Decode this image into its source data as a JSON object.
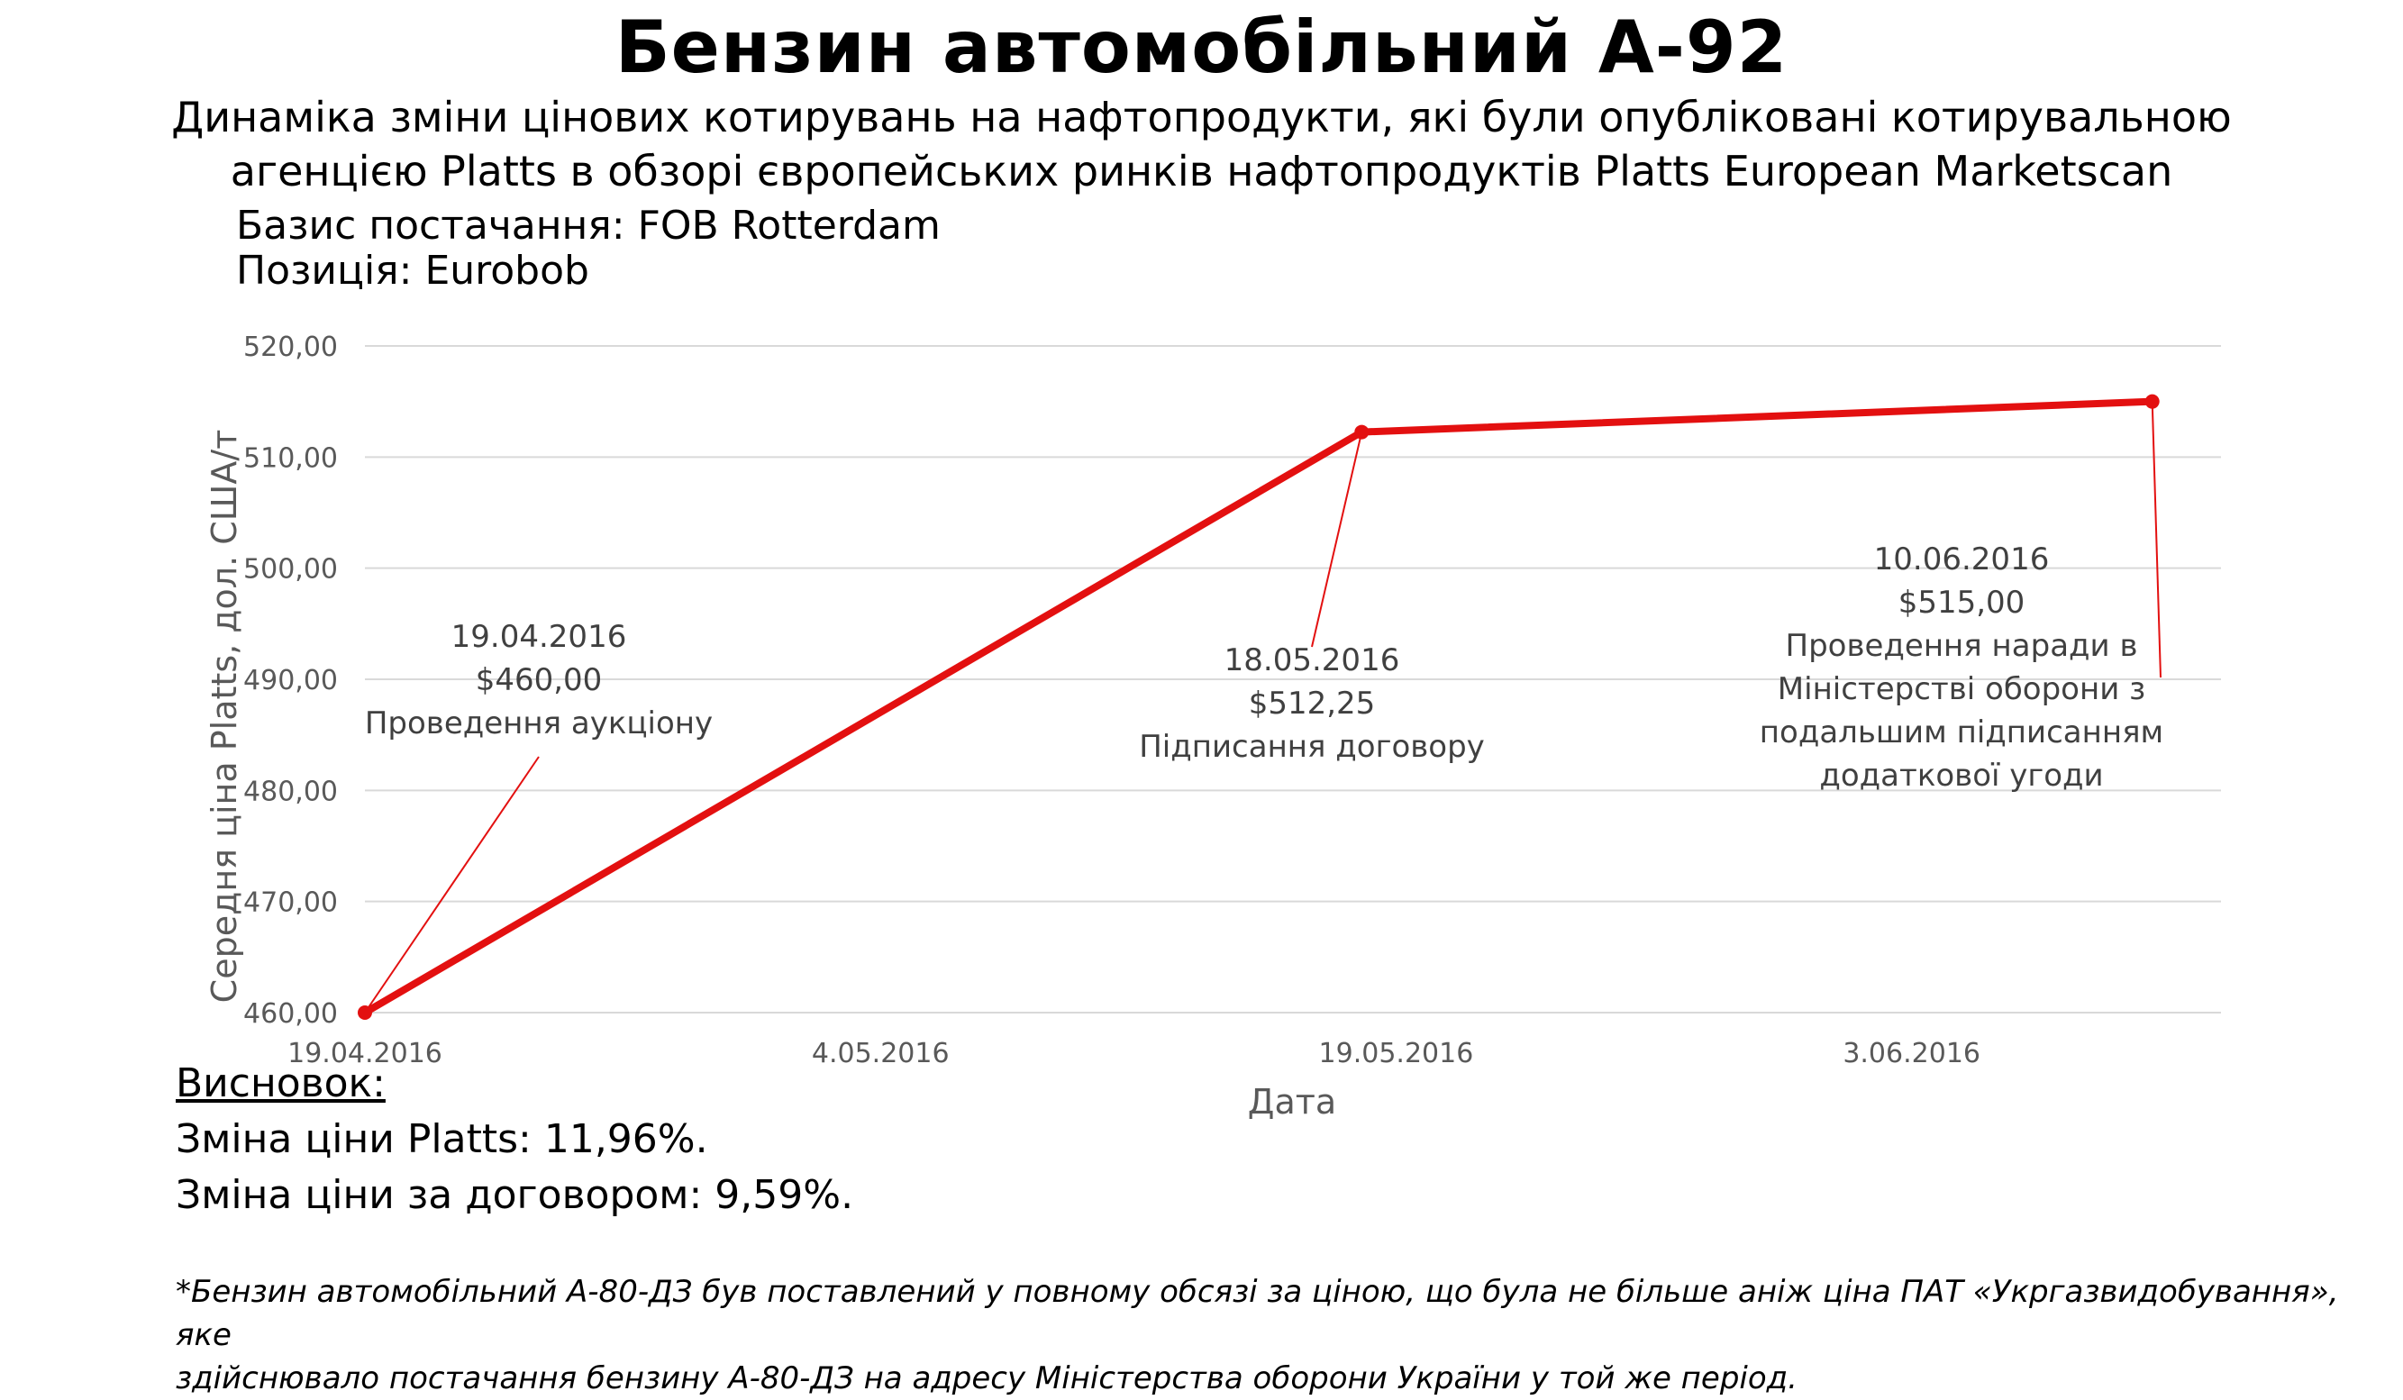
{
  "title": "Бензин автомобільний А-92",
  "subtitle_lines": [
    "Динаміка зміни цінових котирувань на нафтопродукти, які були опубліковані котирувальною",
    "агенцією Platts в обзорі європейських ринків нафтопродуктів Platts European Marketscan"
  ],
  "basis": "Базис постачання: FOB Rotterdam",
  "position": "Позиція: Eurobob",
  "conclusion": {
    "heading": "Висновок:",
    "platts_change": "Зміна ціни Platts: 11,96%.",
    "contract_change": "Зміна ціни за договором: 9,59%."
  },
  "footnote_lines": [
    "*Бензин автомобільний А-80-ДЗ був поставлений у повному обсязі за ціною, що була не більше аніж ціна ПАТ «Укргазвидобування», яке",
    "здійснювало постачання бензину А-80-ДЗ на адресу Міністерства оборони України у той же період."
  ],
  "colors": {
    "series": "#e31010",
    "grid": "#d9d9d9",
    "axis_text": "#595959",
    "annotation_text": "#404040"
  },
  "chart_data": {
    "type": "line",
    "xlabel": "Дата",
    "ylabel": "Середня ціна Platts, дол. США/т",
    "ylim": [
      460,
      520
    ],
    "y_ticks": [
      "460,00",
      "470,00",
      "480,00",
      "490,00",
      "500,00",
      "510,00",
      "520,00"
    ],
    "x_ticks": [
      "19.04.2016",
      "4.05.2016",
      "19.05.2016",
      "3.06.2016"
    ],
    "x_tick_values": [
      "2016-04-19",
      "2016-05-04",
      "2016-05-19",
      "2016-06-03"
    ],
    "xlim": [
      "2016-04-19",
      "2016-06-12"
    ],
    "grid": true,
    "series": [
      {
        "x": [
          "2016-04-19",
          "2016-05-18",
          "2016-06-10"
        ],
        "y": [
          460.0,
          512.25,
          515.0
        ]
      }
    ],
    "annotations": [
      {
        "x": "2016-04-19",
        "lines": [
          "19.04.2016",
          "$460,00",
          "Проведення аукціону"
        ]
      },
      {
        "x": "2016-05-18",
        "lines": [
          "18.05.2016",
          "$512,25",
          "Підписання договору"
        ]
      },
      {
        "x": "2016-06-10",
        "lines": [
          "10.06.2016",
          "$515,00",
          "Проведення наради в",
          "Міністерстві оборони з",
          "подальшим підписанням",
          "додаткової угоди"
        ]
      }
    ]
  }
}
